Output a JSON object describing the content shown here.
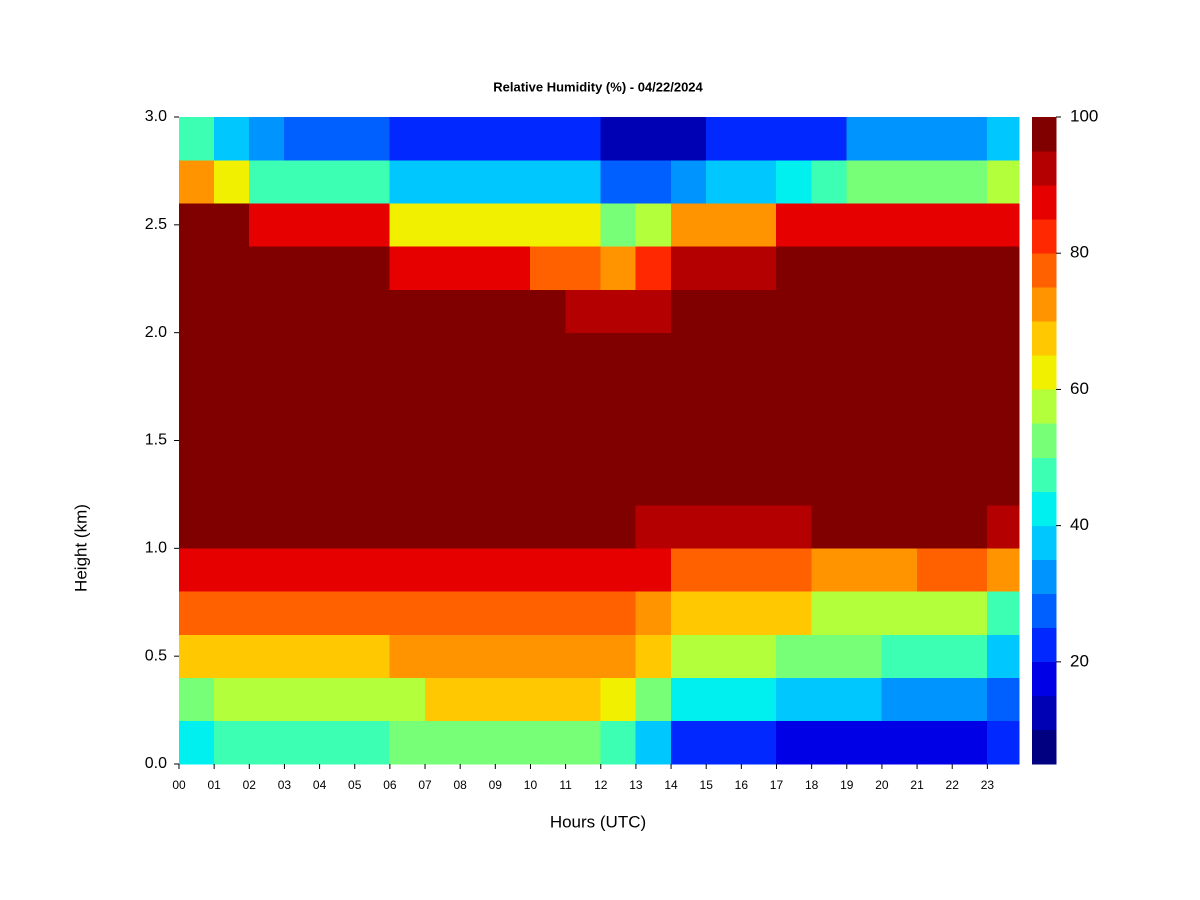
{
  "chart_data": {
    "type": "heatmap",
    "title": "Relative Humidity (%) - 04/22/2024",
    "xlabel": "Hours (UTC)",
    "ylabel": "Height (km)",
    "x": [
      0,
      1,
      2,
      3,
      4,
      5,
      6,
      7,
      8,
      9,
      10,
      11,
      12,
      13,
      14,
      15,
      16,
      17,
      18,
      19,
      20,
      21,
      22,
      23
    ],
    "y": [
      0,
      0.2,
      0.4,
      0.6,
      0.8,
      1,
      1.2,
      1.4,
      1.6,
      1.8,
      2,
      2.2,
      2.4,
      2.6,
      2.8
    ],
    "z": [
      [
        40,
        45,
        45,
        45,
        45,
        45,
        50,
        50,
        50,
        50,
        50,
        50,
        45,
        35,
        20,
        20,
        20,
        18,
        18,
        18,
        15,
        15,
        15,
        22
      ],
      [
        50,
        58,
        58,
        58,
        58,
        58,
        58,
        65,
        65,
        65,
        65,
        65,
        62,
        50,
        42,
        42,
        42,
        38,
        38,
        38,
        32,
        32,
        32,
        25
      ],
      [
        65,
        68,
        68,
        68,
        68,
        68,
        72,
        72,
        72,
        72,
        72,
        72,
        72,
        65,
        58,
        58,
        58,
        52,
        52,
        52,
        45,
        45,
        45,
        35
      ],
      [
        75,
        75,
        75,
        75,
        78,
        78,
        78,
        78,
        78,
        78,
        78,
        78,
        78,
        72,
        65,
        65,
        65,
        65,
        58,
        58,
        58,
        55,
        55,
        45
      ],
      [
        85,
        85,
        85,
        85,
        85,
        85,
        85,
        85,
        85,
        85,
        85,
        85,
        85,
        85,
        78,
        78,
        78,
        78,
        72,
        72,
        72,
        75,
        75,
        70
      ],
      [
        95,
        95,
        95,
        95,
        95,
        95,
        95,
        95,
        95,
        95,
        95,
        100,
        100,
        92,
        92,
        92,
        92,
        92,
        95,
        95,
        95,
        95,
        95,
        90
      ],
      [
        100,
        100,
        100,
        100,
        100,
        100,
        100,
        100,
        100,
        100,
        100,
        100,
        100,
        100,
        100,
        100,
        100,
        100,
        100,
        100,
        100,
        100,
        100,
        100
      ],
      [
        100,
        100,
        100,
        100,
        100,
        100,
        100,
        100,
        100,
        100,
        100,
        100,
        100,
        100,
        100,
        100,
        100,
        100,
        100,
        100,
        100,
        100,
        100,
        100
      ],
      [
        100,
        100,
        100,
        100,
        100,
        100,
        100,
        100,
        100,
        100,
        100,
        100,
        100,
        100,
        100,
        100,
        100,
        100,
        100,
        100,
        100,
        100,
        100,
        100
      ],
      [
        100,
        100,
        100,
        100,
        100,
        100,
        100,
        100,
        100,
        100,
        100,
        100,
        100,
        100,
        100,
        100,
        100,
        100,
        100,
        100,
        100,
        100,
        100,
        100
      ],
      [
        100,
        100,
        100,
        100,
        100,
        100,
        100,
        100,
        100,
        100,
        100,
        92,
        92,
        92,
        100,
        100,
        100,
        100,
        100,
        100,
        100,
        100,
        100,
        100
      ],
      [
        100,
        100,
        100,
        100,
        100,
        100,
        85,
        85,
        85,
        85,
        75,
        75,
        70,
        80,
        90,
        90,
        90,
        100,
        100,
        100,
        100,
        100,
        100,
        100
      ],
      [
        95,
        95,
        85,
        85,
        85,
        85,
        60,
        60,
        60,
        60,
        60,
        60,
        50,
        55,
        70,
        70,
        70,
        85,
        85,
        85,
        85,
        85,
        85,
        85
      ],
      [
        70,
        60,
        45,
        45,
        45,
        45,
        35,
        35,
        35,
        35,
        35,
        35,
        28,
        28,
        30,
        38,
        38,
        40,
        45,
        50,
        50,
        50,
        50,
        55
      ],
      [
        45,
        38,
        30,
        25,
        25,
        25,
        20,
        20,
        20,
        20,
        20,
        20,
        12,
        12,
        12,
        22,
        22,
        22,
        22,
        30,
        30,
        30,
        30,
        35
      ]
    ],
    "xlim": [
      0,
      23.9
    ],
    "ylim": [
      0,
      3
    ],
    "xticks": [
      {
        "value": 0,
        "label": "00"
      },
      {
        "value": 1,
        "label": "01"
      },
      {
        "value": 2,
        "label": "02"
      },
      {
        "value": 3,
        "label": "03"
      },
      {
        "value": 4,
        "label": "04"
      },
      {
        "value": 5,
        "label": "05"
      },
      {
        "value": 6,
        "label": "06"
      },
      {
        "value": 7,
        "label": "07"
      },
      {
        "value": 8,
        "label": "08"
      },
      {
        "value": 9,
        "label": "09"
      },
      {
        "value": 10,
        "label": "10"
      },
      {
        "value": 11,
        "label": "11"
      },
      {
        "value": 12,
        "label": "12"
      },
      {
        "value": 13,
        "label": "13"
      },
      {
        "value": 14,
        "label": "14"
      },
      {
        "value": 15,
        "label": "15"
      },
      {
        "value": 16,
        "label": "16"
      },
      {
        "value": 17,
        "label": "17"
      },
      {
        "value": 18,
        "label": "18"
      },
      {
        "value": 19,
        "label": "19"
      },
      {
        "value": 20,
        "label": "20"
      },
      {
        "value": 21,
        "label": "21"
      },
      {
        "value": 22,
        "label": "22"
      },
      {
        "value": 23,
        "label": "23"
      }
    ],
    "yticks": [
      {
        "value": 0,
        "label": "0.0"
      },
      0.5,
      {
        "value": 1,
        "label": "1.0"
      },
      1.5,
      {
        "value": 2,
        "label": "2.0"
      },
      2.5,
      {
        "value": 3,
        "label": "3.0"
      }
    ],
    "levels": [
      5,
      10,
      15,
      20,
      25,
      30,
      35,
      40,
      45,
      50,
      55,
      60,
      65,
      70,
      75,
      80,
      85,
      90,
      95,
      100
    ],
    "colors": [
      "#000080",
      "#0000b4",
      "#0000e6",
      "#0028ff",
      "#0060ff",
      "#0094ff",
      "#00c8ff",
      "#00f0f0",
      "#3cffb4",
      "#78ff78",
      "#b4ff3c",
      "#f0f000",
      "#ffc800",
      "#ff9400",
      "#ff6000",
      "#ff2800",
      "#e60000",
      "#b40000",
      "#800000"
    ],
    "colorbar_ticks": [
      20,
      40,
      60,
      80,
      100
    ]
  }
}
